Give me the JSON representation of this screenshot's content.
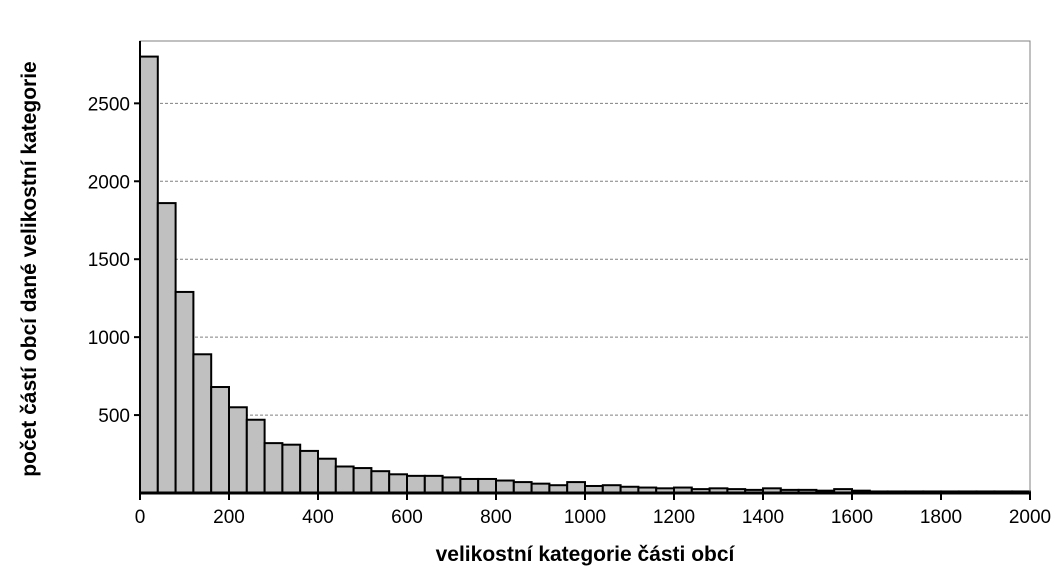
{
  "chart_data": {
    "type": "bar",
    "title": "",
    "xlabel": "velikostní kategorie části obcí",
    "ylabel": "počet částí obcí dané velikostní kategorie",
    "bin_width": 40,
    "xlim": [
      0,
      2000
    ],
    "ylim": [
      0,
      2900
    ],
    "x_ticks": [
      0,
      200,
      400,
      600,
      800,
      1000,
      1200,
      1400,
      1600,
      1800,
      2000
    ],
    "y_ticks": [
      500,
      1000,
      1500,
      2000,
      2500
    ],
    "grid": true,
    "bin_starts": [
      0,
      40,
      80,
      120,
      160,
      200,
      240,
      280,
      320,
      360,
      400,
      440,
      480,
      520,
      560,
      600,
      640,
      680,
      720,
      760,
      800,
      840,
      880,
      920,
      960,
      1000,
      1040,
      1080,
      1120,
      1160,
      1200,
      1240,
      1280,
      1320,
      1360,
      1400,
      1440,
      1480,
      1520,
      1560,
      1600,
      1640,
      1680,
      1720,
      1760,
      1800,
      1840,
      1880,
      1920,
      1960
    ],
    "values": [
      2800,
      1860,
      1290,
      890,
      680,
      550,
      470,
      320,
      310,
      270,
      220,
      170,
      160,
      140,
      120,
      110,
      110,
      100,
      90,
      90,
      80,
      70,
      60,
      50,
      70,
      45,
      50,
      40,
      35,
      30,
      35,
      25,
      30,
      25,
      20,
      30,
      20,
      20,
      15,
      25,
      15,
      10,
      10,
      10,
      10,
      10,
      10,
      10,
      10,
      10
    ]
  }
}
